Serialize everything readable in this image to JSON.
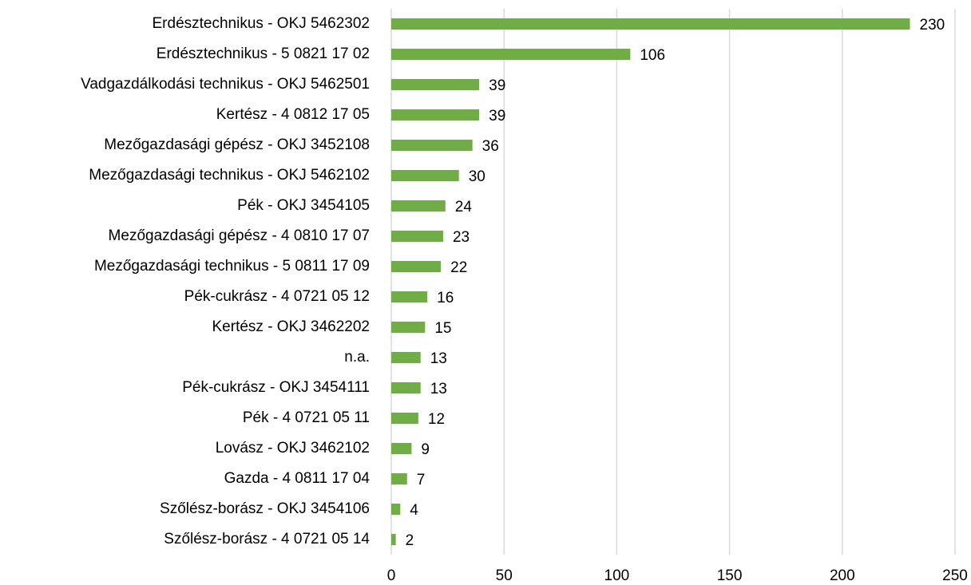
{
  "chart_data": {
    "type": "bar",
    "orientation": "horizontal",
    "categories": [
      "Erdésztechnikus - OKJ 5462302",
      "Erdésztechnikus - 5 0821 17 02",
      "Vadgazdálkodási technikus - OKJ 5462501",
      "Kertész - 4 0812 17 05",
      "Mezőgazdasági gépész - OKJ 3452108",
      "Mezőgazdasági technikus - OKJ 5462102",
      "Pék - OKJ 3454105",
      "Mezőgazdasági gépész - 4 0810 17 07",
      "Mezőgazdasági technikus - 5 0811 17 09",
      "Pék-cukrász - 4 0721 05 12",
      "Kertész - OKJ 3462202",
      "n.a.",
      "Pék-cukrász - OKJ 3454111",
      "Pék - 4 0721 05 11",
      "Lovász - OKJ 3462102",
      "Gazda - 4 0811 17 04",
      "Szőlész-borász - OKJ 3454106",
      "Szőlész-borász - 4 0721 05 14"
    ],
    "values": [
      230,
      106,
      39,
      39,
      36,
      30,
      24,
      23,
      22,
      16,
      15,
      13,
      13,
      12,
      9,
      7,
      4,
      2
    ],
    "color": "#70ad47",
    "xlim": [
      0,
      250
    ],
    "xticks": [
      0,
      50,
      100,
      150,
      200,
      250
    ],
    "grid": true
  }
}
